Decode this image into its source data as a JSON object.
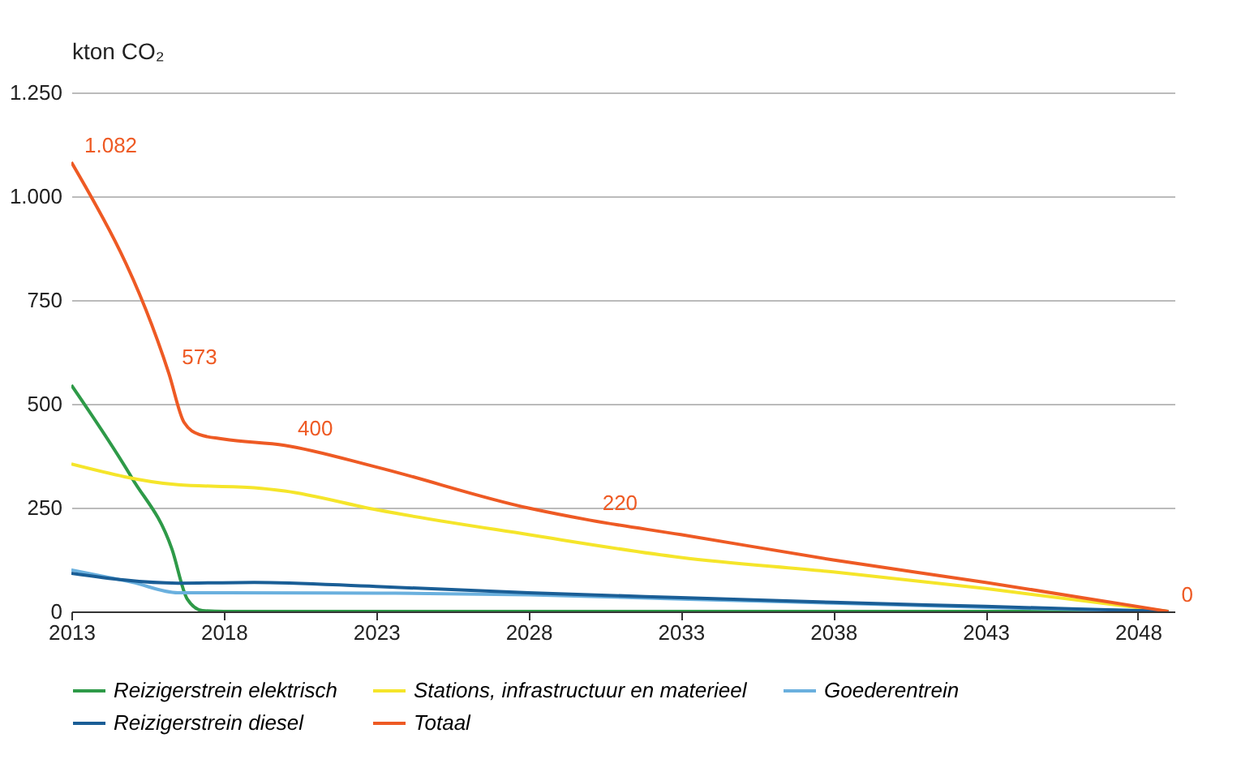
{
  "chart_data": {
    "type": "line",
    "ylabel": "kton CO₂",
    "xlim": [
      2013,
      2049.2
    ],
    "xticks": [
      2013,
      2018,
      2023,
      2028,
      2033,
      2038,
      2043,
      2048
    ],
    "ylim": [
      0,
      1250
    ],
    "yticks": [
      0,
      250,
      500,
      750,
      {
        "value": 1000,
        "label": "1.000"
      },
      {
        "value": 1250,
        "label": "1.250"
      }
    ],
    "grid": "y",
    "legend": "bottom",
    "marker": "none",
    "line_style": "solid",
    "series": [
      {
        "name": "Reizigerstrein elektrisch",
        "color": "#2e9a48",
        "x": [
          2013,
          2015,
          2016.3,
          2016.8,
          2017.3,
          2018,
          2019,
          2049
        ],
        "values": [
          545,
          320,
          150,
          30,
          2,
          0,
          0,
          0
        ]
      },
      {
        "name": "Stations, infrastructuur en materieel",
        "color": "#f5e52a",
        "x": [
          2013,
          2016.5,
          2019,
          2020,
          2023,
          2028,
          2033,
          2038,
          2043,
          2049
        ],
        "values": [
          355,
          305,
          298,
          290,
          245,
          185,
          130,
          95,
          55,
          0
        ]
      },
      {
        "name": "Goederentrein",
        "color": "#6ab0de",
        "x": [
          2013,
          2015,
          2016.5,
          2018,
          2023,
          2028,
          2033,
          2038,
          2043,
          2049
        ],
        "values": [
          100,
          70,
          45,
          45,
          44,
          40,
          30,
          20,
          10,
          0
        ]
      },
      {
        "name": "Reizigerstrein diesel",
        "color": "#1a5e96",
        "x": [
          2013,
          2016.5,
          2019,
          2023,
          2028,
          2033,
          2038,
          2043,
          2049
        ],
        "values": [
          92,
          68,
          70,
          60,
          45,
          33,
          22,
          12,
          0
        ]
      },
      {
        "name": "Totaal",
        "color": "#ee5a24",
        "x": [
          2013,
          2016.2,
          2016.7,
          2017.2,
          2018,
          2020,
          2023,
          2028,
          2030,
          2033,
          2038,
          2043,
          2049
        ],
        "values": [
          1082,
          573,
          455,
          426,
          415,
          400,
          348,
          249,
          220,
          185,
          124,
          70,
          0
        ]
      }
    ],
    "annotations": [
      {
        "text": "1.082",
        "x": 2013,
        "y": 1082
      },
      {
        "text": "573",
        "x": 2016.2,
        "y": 573
      },
      {
        "text": "400",
        "x": 2020,
        "y": 400
      },
      {
        "text": "220",
        "x": 2030,
        "y": 220
      },
      {
        "text": "0",
        "x": 2049,
        "y": 0
      }
    ]
  }
}
